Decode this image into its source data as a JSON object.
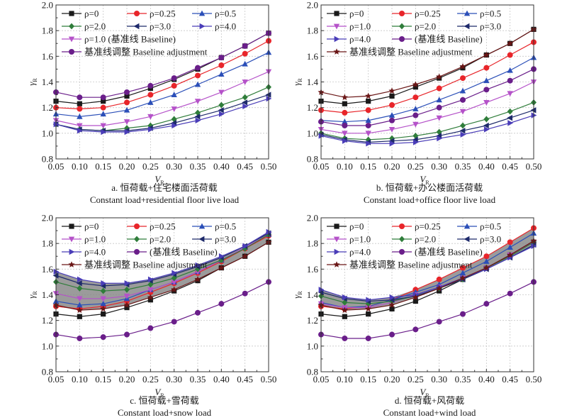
{
  "series_styles": {
    "rho0": {
      "label": "ρ=0",
      "color": "#1a1a1a",
      "marker": "square"
    },
    "rho025": {
      "label": "ρ=0.25",
      "color": "#e8252a",
      "marker": "circle"
    },
    "rho05": {
      "label": "ρ=0.5",
      "color": "#2b4fb8",
      "marker": "triangle-up"
    },
    "rho1": {
      "label": "ρ=1.0",
      "color": "#b552c9",
      "marker": "triangle-down"
    },
    "rho2": {
      "label": "ρ=2.0",
      "color": "#2f7d3a",
      "marker": "diamond"
    },
    "rho3": {
      "label": "ρ=3.0",
      "color": "#1e2a6b",
      "marker": "triangle-left"
    },
    "rho4": {
      "label": "ρ=4.0",
      "color": "#4a3db8",
      "marker": "triangle-right"
    },
    "base": {
      "label": "(基准线 Baseline)",
      "color": "#6a1e8a",
      "marker": "circle"
    },
    "adj": {
      "label": "基准线调整 Baseline adjustment",
      "color": "#6a1616",
      "marker": "star"
    },
    "adj_a": {
      "label": "基准线调整 Baseline adjustment",
      "color": "#6a1e8a",
      "marker": "circle"
    },
    "rho1_a": {
      "label": "ρ=1.0 (基准线 Baseline)",
      "color": "#b552c9",
      "marker": "triangle-down"
    }
  },
  "chart_data": [
    {
      "id": "a",
      "type": "line",
      "title": "a. 恒荷载+住宅楼面活荷载",
      "subtitle": "Constant load+residential floor live load",
      "xlabel": "V_R",
      "ylabel": "γ_R",
      "xlim": [
        0.05,
        0.5
      ],
      "ylim": [
        0.8,
        2.0
      ],
      "grid": true,
      "shaded_band": false,
      "legend_position": "top-left",
      "x": [
        0.05,
        0.1,
        0.15,
        0.2,
        0.25,
        0.3,
        0.35,
        0.4,
        0.45,
        0.5
      ],
      "x_tick_labels": [
        "0.05",
        "0.10",
        "0.15",
        "0.20",
        "0.25",
        "0.30",
        "0.35",
        "0.40",
        "0.45",
        "0.50"
      ],
      "y_ticks": [
        0.8,
        1.0,
        1.2,
        1.4,
        1.6,
        1.8,
        2.0
      ],
      "y_tick_labels": [
        "0.8",
        "1.0",
        "1.2",
        "1.4",
        "1.6",
        "1.8",
        "2.0"
      ],
      "legend_rows": [
        [
          "rho0",
          "rho025",
          "rho05"
        ],
        [
          "rho2",
          "rho3",
          "rho4"
        ],
        [
          "rho1_a"
        ],
        [
          "adj_a"
        ]
      ],
      "series": [
        {
          "key": "rho0",
          "values": [
            1.25,
            1.23,
            1.25,
            1.29,
            1.35,
            1.42,
            1.5,
            1.59,
            1.68,
            1.78
          ]
        },
        {
          "key": "rho025",
          "values": [
            1.2,
            1.19,
            1.2,
            1.24,
            1.3,
            1.37,
            1.45,
            1.53,
            1.62,
            1.72
          ]
        },
        {
          "key": "rho05",
          "values": [
            1.15,
            1.13,
            1.15,
            1.18,
            1.24,
            1.3,
            1.38,
            1.46,
            1.54,
            1.63
          ]
        },
        {
          "key": "rho1_a",
          "values": [
            1.1,
            1.06,
            1.06,
            1.09,
            1.13,
            1.19,
            1.25,
            1.32,
            1.4,
            1.48
          ]
        },
        {
          "key": "rho2",
          "values": [
            1.07,
            1.03,
            1.02,
            1.04,
            1.06,
            1.11,
            1.16,
            1.22,
            1.28,
            1.36
          ]
        },
        {
          "key": "rho3",
          "values": [
            1.07,
            1.03,
            1.02,
            1.02,
            1.04,
            1.08,
            1.13,
            1.18,
            1.24,
            1.3
          ]
        },
        {
          "key": "rho4",
          "values": [
            1.07,
            1.02,
            1.01,
            1.01,
            1.03,
            1.06,
            1.1,
            1.15,
            1.21,
            1.27
          ]
        },
        {
          "key": "adj_a",
          "values": [
            1.32,
            1.28,
            1.28,
            1.32,
            1.37,
            1.43,
            1.51,
            1.59,
            1.68,
            1.78
          ]
        }
      ]
    },
    {
      "id": "b",
      "type": "line",
      "title": "b. 恒荷载+办公楼面活荷载",
      "subtitle": "Constant load+office floor live load",
      "xlabel": "V_R",
      "ylabel": "γ_R",
      "xlim": [
        0.05,
        0.5
      ],
      "ylim": [
        0.8,
        2.0
      ],
      "grid": true,
      "shaded_band": false,
      "legend_position": "top-left",
      "x": [
        0.05,
        0.1,
        0.15,
        0.2,
        0.25,
        0.3,
        0.35,
        0.4,
        0.45,
        0.5
      ],
      "x_tick_labels": [
        "0.05",
        "0.10",
        "0.15",
        "0.20",
        "0.25",
        "0.30",
        "0.35",
        "0.40",
        "0.45",
        "0.50"
      ],
      "y_ticks": [
        0.8,
        1.0,
        1.2,
        1.4,
        1.6,
        1.8,
        2.0
      ],
      "y_tick_labels": [
        "0.8",
        "1.0",
        "1.2",
        "1.4",
        "1.6",
        "1.8",
        "2.0"
      ],
      "legend_rows": [
        [
          "rho0",
          "rho025",
          "rho05"
        ],
        [
          "rho1",
          "rho2",
          "rho3"
        ],
        [
          "rho4",
          "base"
        ],
        [
          "adj"
        ]
      ],
      "series": [
        {
          "key": "rho0",
          "values": [
            1.25,
            1.23,
            1.25,
            1.29,
            1.36,
            1.43,
            1.51,
            1.61,
            1.7,
            1.81
          ]
        },
        {
          "key": "rho025",
          "values": [
            1.18,
            1.16,
            1.18,
            1.22,
            1.28,
            1.35,
            1.43,
            1.51,
            1.61,
            1.71
          ]
        },
        {
          "key": "rho05",
          "values": [
            1.1,
            1.09,
            1.1,
            1.14,
            1.19,
            1.26,
            1.33,
            1.41,
            1.49,
            1.59
          ]
        },
        {
          "key": "rho1",
          "values": [
            1.03,
            1.0,
            1.0,
            1.03,
            1.07,
            1.12,
            1.17,
            1.24,
            1.31,
            1.4
          ]
        },
        {
          "key": "rho2",
          "values": [
            1.0,
            0.96,
            0.95,
            0.96,
            0.98,
            1.01,
            1.06,
            1.11,
            1.17,
            1.24
          ]
        },
        {
          "key": "rho3",
          "values": [
            0.99,
            0.95,
            0.93,
            0.94,
            0.95,
            0.98,
            1.02,
            1.06,
            1.12,
            1.18
          ]
        },
        {
          "key": "rho4",
          "values": [
            0.98,
            0.94,
            0.92,
            0.92,
            0.93,
            0.96,
            0.99,
            1.03,
            1.08,
            1.14
          ]
        },
        {
          "key": "base",
          "values": [
            1.09,
            1.06,
            1.06,
            1.1,
            1.14,
            1.2,
            1.26,
            1.34,
            1.41,
            1.5
          ]
        },
        {
          "key": "adj",
          "values": [
            1.32,
            1.28,
            1.29,
            1.33,
            1.38,
            1.44,
            1.52,
            1.61,
            1.7,
            1.81
          ]
        }
      ]
    },
    {
      "id": "c",
      "type": "line",
      "title": "c. 恒荷载+雪荷载",
      "subtitle": "Constant load+snow load",
      "xlabel": "V_R",
      "ylabel": "γ_R",
      "xlim": [
        0.05,
        0.5
      ],
      "ylim": [
        0.8,
        2.0
      ],
      "grid": true,
      "shaded_band": true,
      "legend_position": "top-left",
      "x": [
        0.05,
        0.1,
        0.15,
        0.2,
        0.25,
        0.3,
        0.35,
        0.4,
        0.45,
        0.5
      ],
      "x_tick_labels": [
        "0.05",
        "0.10",
        "0.15",
        "0.20",
        "0.25",
        "0.30",
        "0.35",
        "0.40",
        "0.45",
        "0.50"
      ],
      "y_ticks": [
        0.8,
        1.0,
        1.2,
        1.4,
        1.6,
        1.8,
        2.0
      ],
      "y_tick_labels": [
        "0.8",
        "1.0",
        "1.2",
        "1.4",
        "1.6",
        "1.8",
        "2.0"
      ],
      "legend_rows": [
        [
          "rho0",
          "rho025",
          "rho05"
        ],
        [
          "rho1",
          "rho2",
          "rho3"
        ],
        [
          "rho4",
          "base"
        ],
        [
          "adj"
        ]
      ],
      "band": {
        "upper": "rho4",
        "lower": "adj"
      },
      "series": [
        {
          "key": "rho0",
          "values": [
            1.25,
            1.23,
            1.25,
            1.3,
            1.36,
            1.43,
            1.51,
            1.61,
            1.7,
            1.81
          ]
        },
        {
          "key": "rho025",
          "values": [
            1.31,
            1.29,
            1.31,
            1.35,
            1.42,
            1.49,
            1.57,
            1.66,
            1.76,
            1.86
          ]
        },
        {
          "key": "rho05",
          "values": [
            1.35,
            1.32,
            1.33,
            1.37,
            1.44,
            1.5,
            1.58,
            1.67,
            1.77,
            1.87
          ]
        },
        {
          "key": "rho1",
          "values": [
            1.41,
            1.37,
            1.37,
            1.39,
            1.44,
            1.5,
            1.58,
            1.67,
            1.77,
            1.87
          ]
        },
        {
          "key": "rho2",
          "values": [
            1.5,
            1.45,
            1.43,
            1.44,
            1.48,
            1.53,
            1.6,
            1.67,
            1.76,
            1.87
          ]
        },
        {
          "key": "rho3",
          "values": [
            1.55,
            1.49,
            1.47,
            1.48,
            1.51,
            1.56,
            1.62,
            1.69,
            1.78,
            1.88
          ]
        },
        {
          "key": "rho4",
          "values": [
            1.58,
            1.52,
            1.49,
            1.49,
            1.52,
            1.57,
            1.63,
            1.7,
            1.78,
            1.89
          ]
        },
        {
          "key": "base",
          "values": [
            1.09,
            1.06,
            1.07,
            1.09,
            1.14,
            1.19,
            1.26,
            1.33,
            1.41,
            1.5
          ]
        },
        {
          "key": "adj",
          "values": [
            1.32,
            1.28,
            1.29,
            1.32,
            1.38,
            1.44,
            1.52,
            1.61,
            1.7,
            1.81
          ]
        }
      ]
    },
    {
      "id": "d",
      "type": "line",
      "title": "d. 恒荷载+风荷载",
      "subtitle": "Constant load+wind load",
      "xlabel": "V_R",
      "ylabel": "γ_R",
      "xlim": [
        0.05,
        0.5
      ],
      "ylim": [
        0.8,
        2.0
      ],
      "grid": true,
      "shaded_band": true,
      "legend_position": "top-left",
      "x": [
        0.05,
        0.1,
        0.15,
        0.2,
        0.25,
        0.3,
        0.35,
        0.4,
        0.45,
        0.5
      ],
      "x_tick_labels": [
        "0.05",
        "0.10",
        "0.15",
        "0.20",
        "0.25",
        "0.30",
        "0.35",
        "0.40",
        "0.45",
        "0.50"
      ],
      "y_ticks": [
        0.8,
        1.0,
        1.2,
        1.4,
        1.6,
        1.8,
        2.0
      ],
      "y_tick_labels": [
        "0.8",
        "1.0",
        "1.2",
        "1.4",
        "1.6",
        "1.8",
        "2.0"
      ],
      "legend_rows": [
        [
          "rho0",
          "rho025",
          "rho05"
        ],
        [
          "rho1",
          "rho2",
          "rho3"
        ],
        [
          "rho4",
          "base"
        ],
        [
          "adj"
        ]
      ],
      "band": {
        "upper": "envelope_max",
        "lower": "envelope_min"
      },
      "series": [
        {
          "key": "rho0",
          "values": [
            1.25,
            1.23,
            1.25,
            1.29,
            1.35,
            1.43,
            1.52,
            1.61,
            1.71,
            1.81
          ]
        },
        {
          "key": "rho025",
          "values": [
            1.31,
            1.29,
            1.31,
            1.36,
            1.44,
            1.52,
            1.61,
            1.7,
            1.81,
            1.92
          ]
        },
        {
          "key": "rho05",
          "values": [
            1.34,
            1.3,
            1.31,
            1.36,
            1.42,
            1.48,
            1.57,
            1.66,
            1.77,
            1.88
          ]
        },
        {
          "key": "rho1",
          "values": [
            1.33,
            1.3,
            1.3,
            1.34,
            1.4,
            1.46,
            1.53,
            1.61,
            1.71,
            1.81
          ]
        },
        {
          "key": "rho2",
          "values": [
            1.39,
            1.34,
            1.33,
            1.35,
            1.39,
            1.45,
            1.52,
            1.61,
            1.7,
            1.81
          ]
        },
        {
          "key": "rho3",
          "values": [
            1.42,
            1.37,
            1.35,
            1.36,
            1.39,
            1.45,
            1.52,
            1.6,
            1.69,
            1.79
          ]
        },
        {
          "key": "rho4",
          "values": [
            1.44,
            1.38,
            1.36,
            1.38,
            1.4,
            1.46,
            1.53,
            1.6,
            1.69,
            1.78
          ]
        },
        {
          "key": "base",
          "values": [
            1.09,
            1.06,
            1.06,
            1.09,
            1.13,
            1.19,
            1.25,
            1.33,
            1.41,
            1.5
          ]
        },
        {
          "key": "adj",
          "values": [
            1.32,
            1.28,
            1.29,
            1.32,
            1.38,
            1.45,
            1.53,
            1.61,
            1.71,
            1.82
          ]
        }
      ]
    }
  ]
}
